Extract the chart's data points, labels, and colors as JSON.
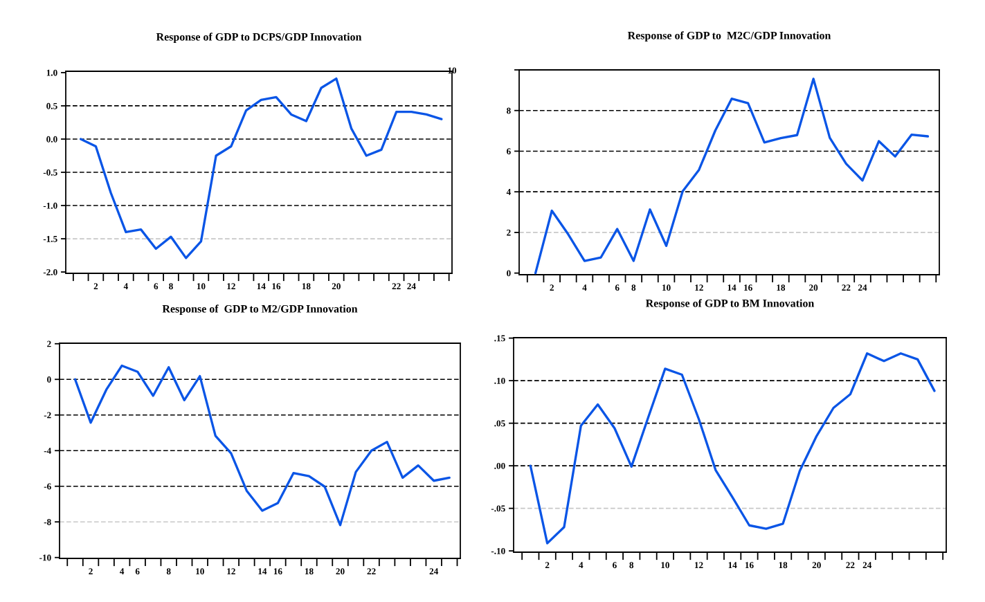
{
  "chart_data": [
    {
      "type": "line",
      "title": "Response of GDP to DCPS/GDP Innovation",
      "annotations": [
        "10"
      ],
      "categories": [
        null,
        "2",
        null,
        "4",
        null,
        "6",
        "8",
        null,
        "10",
        null,
        "12",
        null,
        "14",
        "16",
        null,
        "18",
        null,
        "20",
        null,
        null,
        null,
        "22",
        "24",
        null,
        null
      ],
      "ylim": [
        -2.02,
        1.02
      ],
      "yticks": [
        {
          "value": 1.0,
          "label": "1.0"
        },
        {
          "value": 0.5,
          "label": "0.5"
        },
        {
          "value": 0.0,
          "label": "0.0"
        },
        {
          "value": -0.5,
          "label": "-0.5"
        },
        {
          "value": -1.0,
          "label": "-1.0"
        },
        {
          "value": -1.5,
          "label": "-1.5"
        },
        {
          "value": -2.0,
          "label": "-2.0"
        }
      ],
      "ref_lines": [
        {
          "axis": "y",
          "value": 0.5,
          "color": "#000000",
          "line_style": "dashed"
        },
        {
          "axis": "y",
          "value": 0.0,
          "color": "#000000",
          "line_style": "dashed"
        },
        {
          "axis": "y",
          "value": -0.5,
          "color": "#000000",
          "line_style": "dashed"
        },
        {
          "axis": "y",
          "value": -1.0,
          "color": "#000000",
          "line_style": "dashed"
        },
        {
          "axis": "y",
          "value": -1.5,
          "color": "#c8c8c8",
          "line_style": "dashed"
        }
      ],
      "series": [
        {
          "color": "#0a55e6",
          "values": [
            0.0,
            -0.11,
            -0.81,
            -1.4,
            -1.36,
            -1.65,
            -1.47,
            -1.79,
            -1.54,
            -0.25,
            -0.11,
            0.43,
            0.59,
            0.63,
            0.37,
            0.27,
            0.77,
            0.91,
            0.16,
            -0.25,
            -0.16,
            0.41,
            0.41,
            0.37,
            0.3
          ]
        }
      ]
    },
    {
      "type": "line",
      "title": "Response of GDP to  M2C/GDP Innovation",
      "categories": [
        null,
        "2",
        null,
        "4",
        null,
        "6",
        "8",
        null,
        "10",
        null,
        "12",
        null,
        "14",
        "16",
        null,
        "18",
        null,
        "20",
        null,
        "22",
        "24",
        null,
        null,
        null,
        null
      ],
      "ylim": [
        -0.08,
        10.0
      ],
      "yticks": [
        0,
        2,
        4,
        6,
        8,
        {
          "value": 10,
          "label": null
        }
      ],
      "ref_lines": [
        {
          "axis": "y",
          "value": 8,
          "color": "#000000",
          "line_style": "dashed"
        },
        {
          "axis": "y",
          "value": 6,
          "color": "#000000",
          "line_style": "dashed"
        },
        {
          "axis": "y",
          "value": 4,
          "color": "#000000",
          "line_style": "dashed"
        },
        {
          "axis": "y",
          "value": 2,
          "color": "#c8c8c8",
          "line_style": "dashed"
        }
      ],
      "series": [
        {
          "color": "#0a55e6",
          "values": [
            0.0,
            3.07,
            1.91,
            0.6,
            0.77,
            2.17,
            0.6,
            3.13,
            1.34,
            4.02,
            5.08,
            7.02,
            8.58,
            8.36,
            6.43,
            6.64,
            6.79,
            9.56,
            6.66,
            5.38,
            4.56,
            6.49,
            5.74,
            6.81,
            6.73
          ]
        }
      ]
    },
    {
      "type": "line",
      "title": "Response of  GDP to M2/GDP Innovation",
      "categories": [
        null,
        "2",
        null,
        "4",
        "6",
        null,
        "8",
        null,
        "10",
        null,
        "12",
        null,
        "14",
        "16",
        null,
        "18",
        null,
        "20",
        null,
        "22",
        null,
        null,
        null,
        "24",
        null
      ],
      "ylim": [
        -10.05,
        2.03
      ],
      "yticks": [
        2,
        0,
        -2,
        -4,
        -6,
        -8,
        -10
      ],
      "ref_lines": [
        {
          "axis": "y",
          "value": 0,
          "color": "#000000",
          "line_style": "dashed"
        },
        {
          "axis": "y",
          "value": -2,
          "color": "#000000",
          "line_style": "dashed"
        },
        {
          "axis": "y",
          "value": -4,
          "color": "#000000",
          "line_style": "dashed"
        },
        {
          "axis": "y",
          "value": -6,
          "color": "#000000",
          "line_style": "dashed"
        },
        {
          "axis": "y",
          "value": -8,
          "color": "#c8c8c8",
          "line_style": "dashed"
        }
      ],
      "series": [
        {
          "color": "#0a55e6",
          "values": [
            0.0,
            -2.43,
            -0.58,
            0.77,
            0.43,
            -0.92,
            0.68,
            -1.17,
            0.18,
            -3.17,
            -4.15,
            -6.25,
            -7.37,
            -6.94,
            -5.26,
            -5.43,
            -6.02,
            -8.18,
            -5.2,
            -4.0,
            -3.51,
            -5.52,
            -4.83,
            -5.69,
            -5.52
          ]
        }
      ]
    },
    {
      "type": "line",
      "title": "Response of GDP to BM Innovation",
      "categories": [
        null,
        "2",
        null,
        "4",
        null,
        "6",
        "8",
        null,
        "10",
        null,
        "12",
        null,
        "14",
        "16",
        null,
        "18",
        null,
        "20",
        null,
        "22",
        "24",
        null,
        null,
        null,
        null
      ],
      "ylim": [
        -0.1015,
        0.1505
      ],
      "yticks": [
        {
          "value": 0.15,
          "label": ".15"
        },
        {
          "value": 0.1,
          "label": ".10"
        },
        {
          "value": 0.05,
          "label": ".05"
        },
        {
          "value": 0.0,
          "label": ".00"
        },
        {
          "value": -0.05,
          "label": "-.05"
        },
        {
          "value": -0.1,
          "label": "-.10"
        }
      ],
      "ref_lines": [
        {
          "axis": "y",
          "value": 0.1,
          "color": "#000000",
          "line_style": "dashed"
        },
        {
          "axis": "y",
          "value": 0.05,
          "color": "#000000",
          "line_style": "dashed"
        },
        {
          "axis": "y",
          "value": 0.0,
          "color": "#000000",
          "line_style": "dashed"
        },
        {
          "axis": "y",
          "value": -0.05,
          "color": "#c8c8c8",
          "line_style": "dashed"
        }
      ],
      "series": [
        {
          "color": "#0a55e6",
          "values": [
            0.0,
            -0.091,
            -0.072,
            0.047,
            0.072,
            0.044,
            -0.001,
            0.057,
            0.114,
            0.107,
            0.055,
            -0.005,
            -0.037,
            -0.07,
            -0.074,
            -0.068,
            -0.006,
            0.035,
            0.068,
            0.084,
            0.132,
            0.123,
            0.132,
            0.125,
            0.088
          ]
        }
      ]
    }
  ]
}
